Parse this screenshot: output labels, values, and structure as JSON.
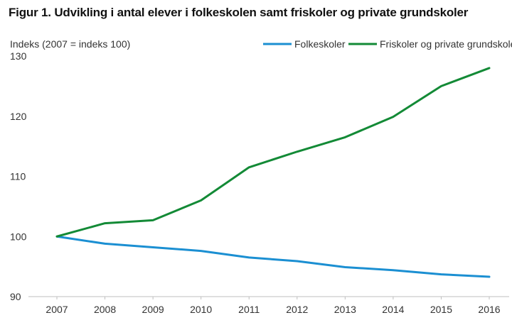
{
  "chart_data": {
    "type": "line",
    "title": "Figur 1. Udvikling i antal elever i folkeskolen samt friskoler og private grundskoler",
    "ylabel": "Indeks (2007 = indeks 100)",
    "xlabel": "",
    "x": [
      "2007",
      "2008",
      "2009",
      "2010",
      "2011",
      "2012",
      "2013",
      "2014",
      "2015",
      "2016"
    ],
    "ylim": [
      90,
      130
    ],
    "yticks": [
      "90",
      "100",
      "110",
      "120",
      "130"
    ],
    "grid": false,
    "legend_position": "top-right",
    "series": [
      {
        "name": "Folkeskoler",
        "color": "#1b8fd2",
        "values": [
          100,
          98.8,
          98.2,
          97.6,
          96.5,
          95.9,
          94.9,
          94.4,
          93.7,
          93.3
        ]
      },
      {
        "name": "Friskoler og private grundskoler",
        "color": "#138a36",
        "values": [
          100,
          102.2,
          102.7,
          106.0,
          111.5,
          114.1,
          116.5,
          119.9,
          125.0,
          128.0
        ]
      }
    ]
  }
}
